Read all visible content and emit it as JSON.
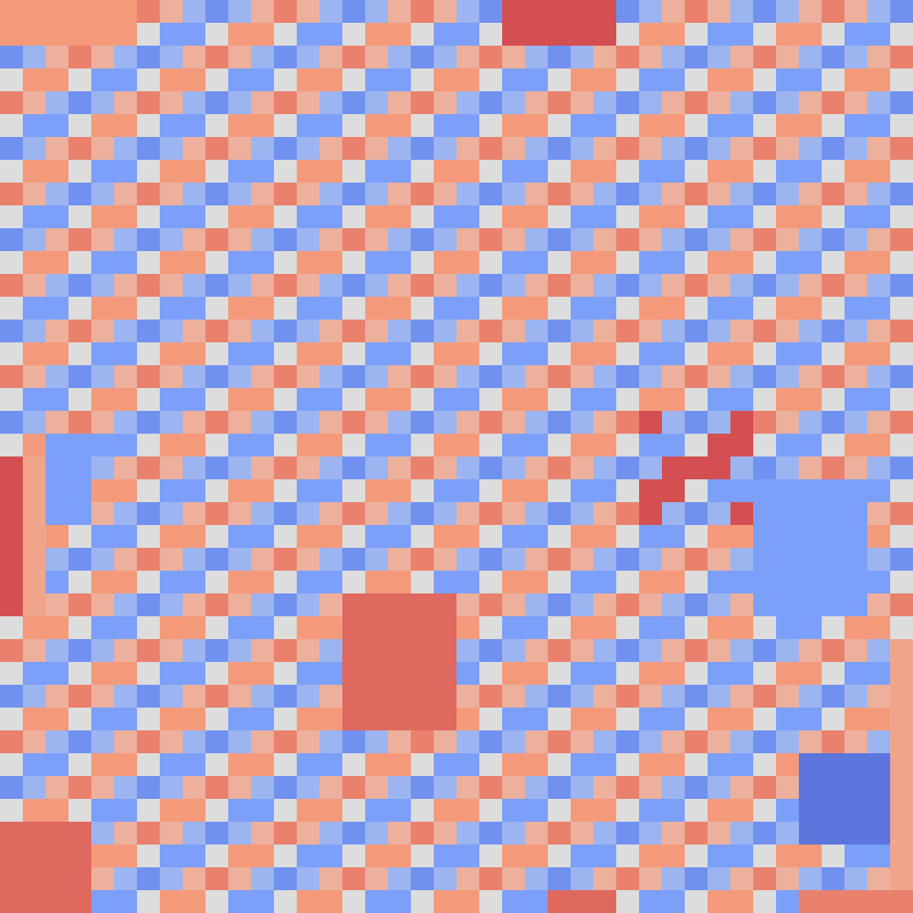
{
  "chart_data": {
    "type": "heatmap",
    "tick_labels": false,
    "color_range": [
      -12,
      12
    ],
    "cells": [
      [
        6,
        6,
        6,
        6,
        6,
        6,
        7,
        4,
        -4,
        -7,
        -4,
        4,
        7,
        4,
        -4,
        -7,
        -4,
        4,
        7,
        4,
        -4,
        -7,
        9,
        9,
        9,
        9,
        9,
        -7,
        -4,
        4,
        7,
        4,
        -4,
        -7,
        -4,
        4,
        7,
        4,
        -4,
        -7
      ],
      [
        6,
        6,
        6,
        6,
        6,
        6,
        0,
        -6,
        -6,
        0,
        6,
        6,
        0,
        -6,
        -6,
        0,
        6,
        6,
        0,
        -6,
        -6,
        0,
        9,
        9,
        9,
        9,
        9,
        0,
        6,
        6,
        0,
        -6,
        -6,
        0,
        6,
        6,
        0,
        -6,
        -6,
        0
      ],
      [
        -7,
        -4,
        4,
        7,
        4,
        -4,
        -7,
        -4,
        4,
        7,
        4,
        -4,
        -7,
        -4,
        4,
        7,
        4,
        -4,
        -7,
        -4,
        4,
        7,
        4,
        -4,
        -7,
        -4,
        4,
        7,
        4,
        -4,
        -7,
        -4,
        4,
        7,
        4,
        -4,
        -7,
        -4,
        4,
        7
      ],
      [
        0,
        6,
        6,
        0,
        -6,
        -6,
        0,
        6,
        6,
        0,
        -6,
        -6,
        0,
        6,
        6,
        0,
        -6,
        -6,
        0,
        6,
        6,
        0,
        -6,
        -6,
        0,
        6,
        6,
        0,
        -6,
        -6,
        0,
        6,
        6,
        0,
        -6,
        -6,
        0,
        6,
        6,
        0
      ],
      [
        7,
        4,
        -4,
        -7,
        -4,
        4,
        7,
        4,
        -4,
        -7,
        -4,
        4,
        7,
        4,
        -4,
        -7,
        -4,
        4,
        7,
        4,
        -4,
        -7,
        -4,
        4,
        7,
        4,
        -4,
        -7,
        -4,
        4,
        7,
        4,
        -4,
        -7,
        -4,
        4,
        7,
        4,
        -4,
        -7
      ],
      [
        0,
        -6,
        -6,
        0,
        6,
        6,
        0,
        -6,
        -6,
        0,
        6,
        6,
        0,
        -6,
        -6,
        0,
        6,
        6,
        0,
        -6,
        -6,
        0,
        6,
        6,
        0,
        -6,
        -6,
        0,
        6,
        6,
        0,
        -6,
        -6,
        0,
        6,
        6,
        0,
        -6,
        -6,
        0
      ],
      [
        -7,
        -4,
        4,
        7,
        4,
        -4,
        -7,
        -4,
        4,
        7,
        4,
        -4,
        -7,
        -4,
        4,
        7,
        4,
        -4,
        -7,
        -4,
        4,
        7,
        4,
        -4,
        -7,
        -4,
        4,
        7,
        4,
        -4,
        -7,
        -4,
        4,
        7,
        4,
        -4,
        -7,
        -4,
        4,
        7
      ],
      [
        0,
        6,
        6,
        0,
        -6,
        -6,
        0,
        6,
        6,
        0,
        -6,
        -6,
        0,
        6,
        6,
        0,
        -6,
        -6,
        0,
        6,
        6,
        0,
        -6,
        -6,
        0,
        6,
        6,
        0,
        -6,
        -6,
        0,
        6,
        6,
        0,
        -6,
        -6,
        0,
        6,
        6,
        0
      ],
      [
        7,
        4,
        -4,
        -7,
        -4,
        4,
        7,
        4,
        -4,
        -7,
        -4,
        4,
        7,
        4,
        -4,
        -7,
        -4,
        4,
        7,
        4,
        -4,
        -7,
        -4,
        4,
        7,
        4,
        -4,
        -7,
        -4,
        4,
        7,
        4,
        -4,
        -7,
        -4,
        4,
        7,
        4,
        -4,
        -7
      ],
      [
        0,
        -6,
        -6,
        0,
        6,
        6,
        0,
        -6,
        -6,
        0,
        6,
        6,
        0,
        -6,
        -6,
        0,
        6,
        6,
        0,
        -6,
        -6,
        0,
        6,
        6,
        0,
        -6,
        -6,
        0,
        6,
        6,
        0,
        -6,
        -6,
        0,
        6,
        6,
        0,
        -6,
        -6,
        0
      ],
      [
        -7,
        -4,
        4,
        7,
        4,
        -4,
        -7,
        -4,
        4,
        7,
        4,
        -4,
        -7,
        -4,
        4,
        7,
        4,
        -4,
        -7,
        -4,
        4,
        7,
        4,
        -4,
        -7,
        -4,
        4,
        7,
        4,
        -4,
        -7,
        -4,
        4,
        7,
        4,
        -4,
        -7,
        -4,
        4,
        7
      ],
      [
        0,
        6,
        6,
        0,
        -6,
        -6,
        0,
        6,
        6,
        0,
        -6,
        -6,
        0,
        6,
        6,
        0,
        -6,
        -6,
        0,
        6,
        6,
        0,
        -6,
        -6,
        0,
        6,
        6,
        0,
        -6,
        -6,
        0,
        6,
        6,
        0,
        -6,
        -6,
        0,
        6,
        6,
        0
      ],
      [
        7,
        4,
        -4,
        -7,
        -4,
        4,
        7,
        4,
        -4,
        -7,
        -4,
        4,
        7,
        4,
        -4,
        -7,
        -4,
        4,
        7,
        4,
        -4,
        -7,
        -4,
        4,
        7,
        4,
        -4,
        -7,
        -4,
        4,
        7,
        4,
        -4,
        -7,
        -4,
        4,
        7,
        4,
        -4,
        -7
      ],
      [
        0,
        -6,
        -6,
        0,
        6,
        6,
        0,
        -6,
        -6,
        0,
        6,
        6,
        0,
        -6,
        -6,
        0,
        6,
        6,
        0,
        -6,
        -6,
        0,
        6,
        6,
        0,
        -6,
        -6,
        0,
        6,
        6,
        0,
        -6,
        -6,
        0,
        6,
        6,
        0,
        -6,
        -6,
        0
      ],
      [
        -7,
        -4,
        4,
        7,
        4,
        -4,
        -7,
        -4,
        4,
        7,
        4,
        -4,
        -7,
        -4,
        4,
        7,
        4,
        -4,
        -7,
        -4,
        4,
        7,
        4,
        -4,
        -7,
        -4,
        4,
        7,
        4,
        -4,
        -7,
        -4,
        4,
        7,
        4,
        -4,
        -7,
        -4,
        4,
        7
      ],
      [
        0,
        6,
        6,
        0,
        -6,
        -6,
        0,
        6,
        6,
        0,
        -6,
        -6,
        0,
        6,
        6,
        0,
        -6,
        -6,
        0,
        6,
        6,
        0,
        -6,
        -6,
        0,
        6,
        6,
        0,
        -6,
        -6,
        0,
        6,
        6,
        0,
        -6,
        -6,
        0,
        6,
        6,
        0
      ],
      [
        7,
        4,
        -4,
        -7,
        -4,
        4,
        7,
        4,
        -4,
        -7,
        -4,
        4,
        7,
        4,
        -4,
        -7,
        -4,
        4,
        7,
        4,
        -4,
        -7,
        -4,
        4,
        7,
        4,
        -4,
        -7,
        -4,
        4,
        7,
        4,
        -4,
        -7,
        -4,
        4,
        7,
        4,
        -4,
        -7
      ],
      [
        0,
        -6,
        -6,
        0,
        6,
        6,
        0,
        -6,
        -6,
        0,
        6,
        6,
        0,
        -6,
        -6,
        0,
        6,
        6,
        0,
        -6,
        -6,
        0,
        6,
        6,
        0,
        -6,
        -6,
        0,
        6,
        6,
        0,
        -6,
        -6,
        0,
        6,
        6,
        0,
        -6,
        -6,
        0
      ],
      [
        -7,
        -4,
        4,
        7,
        4,
        -4,
        -7,
        -4,
        4,
        7,
        4,
        -4,
        -7,
        -4,
        4,
        7,
        4,
        -4,
        -7,
        -4,
        4,
        7,
        4,
        -4,
        -7,
        -4,
        4,
        7,
        9,
        -4,
        -7,
        -4,
        9,
        7,
        4,
        -4,
        -7,
        -4,
        4,
        7
      ],
      [
        0,
        6,
        -6,
        -6,
        -6,
        -6,
        0,
        6,
        6,
        0,
        -6,
        -6,
        0,
        6,
        6,
        0,
        -6,
        -6,
        0,
        6,
        6,
        0,
        -6,
        -6,
        0,
        6,
        6,
        0,
        -6,
        -6,
        0,
        9,
        9,
        0,
        -6,
        -6,
        0,
        6,
        6,
        0
      ],
      [
        9,
        5,
        -6,
        -6,
        -4,
        4,
        7,
        4,
        -4,
        -7,
        -4,
        4,
        7,
        4,
        -4,
        -7,
        -4,
        4,
        7,
        4,
        -4,
        -7,
        -4,
        4,
        7,
        4,
        -4,
        -7,
        -4,
        9,
        9,
        9,
        -4,
        -7,
        -4,
        4,
        7,
        4,
        -4,
        -7
      ],
      [
        9,
        5,
        -6,
        -6,
        6,
        6,
        0,
        -6,
        -6,
        0,
        6,
        6,
        0,
        -6,
        -6,
        0,
        6,
        6,
        0,
        -6,
        -6,
        0,
        6,
        6,
        0,
        -6,
        -6,
        0,
        9,
        9,
        0,
        -6,
        -6,
        -6,
        -6,
        -6,
        -6,
        -6,
        -6,
        0
      ],
      [
        9,
        5,
        -6,
        -6,
        4,
        -4,
        -7,
        -4,
        4,
        7,
        4,
        -4,
        -7,
        -4,
        4,
        7,
        4,
        -4,
        -7,
        -4,
        4,
        7,
        4,
        -4,
        -7,
        -4,
        4,
        7,
        9,
        -4,
        -7,
        -4,
        9,
        -6,
        -6,
        -6,
        -6,
        -6,
        4,
        7
      ],
      [
        9,
        5,
        6,
        0,
        -6,
        -6,
        0,
        6,
        6,
        0,
        -6,
        -6,
        0,
        6,
        6,
        0,
        -6,
        -6,
        0,
        6,
        6,
        0,
        -6,
        -6,
        0,
        6,
        6,
        0,
        -6,
        -6,
        0,
        6,
        6,
        -6,
        -6,
        -6,
        -6,
        -6,
        6,
        0
      ],
      [
        9,
        5,
        -4,
        -7,
        -4,
        4,
        7,
        4,
        -4,
        -7,
        -4,
        4,
        7,
        4,
        -4,
        -7,
        -4,
        4,
        7,
        4,
        -4,
        -7,
        -4,
        4,
        7,
        4,
        -4,
        -7,
        -4,
        4,
        7,
        4,
        -4,
        -6,
        -6,
        -6,
        -6,
        -6,
        -4,
        -7
      ],
      [
        9,
        5,
        -6,
        0,
        6,
        6,
        0,
        -6,
        -6,
        0,
        6,
        6,
        0,
        -6,
        -6,
        0,
        6,
        6,
        0,
        -6,
        -6,
        0,
        6,
        6,
        0,
        -6,
        -6,
        0,
        6,
        6,
        0,
        -6,
        -6,
        -6,
        -6,
        -6,
        -6,
        -6,
        -6,
        0
      ],
      [
        9,
        5,
        4,
        7,
        4,
        -4,
        -7,
        -4,
        4,
        7,
        4,
        -4,
        -7,
        -4,
        4,
        8,
        8,
        8,
        8,
        8,
        4,
        7,
        4,
        -4,
        -7,
        -4,
        4,
        7,
        4,
        -4,
        -7,
        -4,
        4,
        -6,
        -6,
        -6,
        -6,
        -6,
        4,
        7
      ],
      [
        0,
        6,
        6,
        0,
        -6,
        -6,
        0,
        6,
        6,
        0,
        -6,
        -6,
        0,
        6,
        6,
        8,
        8,
        8,
        8,
        8,
        6,
        0,
        -6,
        -6,
        0,
        6,
        6,
        0,
        -6,
        -6,
        0,
        6,
        6,
        0,
        -6,
        -6,
        0,
        6,
        6,
        0
      ],
      [
        7,
        4,
        -4,
        -7,
        -4,
        4,
        7,
        4,
        -4,
        -7,
        -4,
        4,
        7,
        4,
        -4,
        8,
        8,
        8,
        8,
        8,
        -4,
        -7,
        -4,
        4,
        7,
        4,
        -4,
        -7,
        -4,
        4,
        7,
        4,
        -4,
        -7,
        -4,
        4,
        7,
        4,
        -4,
        5
      ],
      [
        0,
        -6,
        -6,
        0,
        6,
        6,
        0,
        -6,
        -6,
        0,
        6,
        6,
        0,
        -6,
        -6,
        8,
        8,
        8,
        8,
        8,
        -6,
        0,
        6,
        6,
        0,
        -6,
        -6,
        0,
        6,
        6,
        0,
        -6,
        -6,
        0,
        6,
        6,
        0,
        -6,
        -6,
        5
      ],
      [
        -7,
        -4,
        4,
        7,
        4,
        -4,
        -7,
        -4,
        4,
        7,
        4,
        -4,
        -7,
        -4,
        4,
        8,
        8,
        8,
        8,
        8,
        4,
        7,
        4,
        -4,
        -7,
        -4,
        4,
        7,
        4,
        -4,
        -7,
        -4,
        4,
        7,
        4,
        -4,
        -7,
        -4,
        4,
        5
      ],
      [
        0,
        6,
        6,
        0,
        -6,
        -6,
        0,
        6,
        6,
        0,
        -6,
        -6,
        0,
        6,
        6,
        8,
        8,
        8,
        8,
        8,
        6,
        0,
        -6,
        -6,
        0,
        6,
        6,
        0,
        -6,
        -6,
        0,
        6,
        6,
        0,
        -6,
        -6,
        0,
        6,
        6,
        5
      ],
      [
        7,
        4,
        -4,
        -7,
        -4,
        4,
        7,
        4,
        -4,
        -7,
        -4,
        4,
        7,
        4,
        -4,
        -7,
        -4,
        4,
        7,
        4,
        -4,
        -7,
        -4,
        4,
        7,
        4,
        -4,
        -7,
        -4,
        4,
        7,
        4,
        -4,
        -7,
        -4,
        4,
        7,
        4,
        -4,
        5
      ],
      [
        0,
        -6,
        -6,
        0,
        6,
        6,
        0,
        -6,
        -6,
        0,
        6,
        6,
        0,
        -6,
        -6,
        0,
        6,
        6,
        0,
        -6,
        -6,
        0,
        6,
        6,
        0,
        -6,
        -6,
        0,
        6,
        6,
        0,
        -6,
        -6,
        0,
        6,
        -9,
        -9,
        -9,
        -9,
        5
      ],
      [
        -7,
        -4,
        4,
        7,
        4,
        -4,
        -7,
        -4,
        4,
        7,
        4,
        -4,
        -7,
        -4,
        4,
        7,
        4,
        -4,
        -7,
        -4,
        4,
        7,
        4,
        -4,
        -7,
        -4,
        4,
        7,
        4,
        -4,
        -7,
        -4,
        4,
        7,
        4,
        -9,
        -9,
        -9,
        -9,
        5
      ],
      [
        0,
        6,
        6,
        0,
        -6,
        -6,
        0,
        6,
        6,
        0,
        -6,
        -6,
        0,
        6,
        6,
        0,
        -6,
        -6,
        0,
        6,
        6,
        0,
        -6,
        -6,
        0,
        6,
        6,
        0,
        -6,
        -6,
        0,
        6,
        6,
        0,
        -6,
        -9,
        -9,
        -9,
        -9,
        5
      ],
      [
        8,
        8,
        8,
        8,
        -4,
        4,
        7,
        4,
        -4,
        -7,
        -4,
        4,
        7,
        4,
        -4,
        -7,
        -4,
        4,
        7,
        4,
        -4,
        -7,
        -4,
        4,
        7,
        4,
        -4,
        -7,
        -4,
        4,
        7,
        4,
        -4,
        -7,
        -4,
        -9,
        -9,
        -9,
        -9,
        5
      ],
      [
        8,
        8,
        8,
        8,
        6,
        6,
        0,
        -6,
        -6,
        0,
        6,
        6,
        0,
        -6,
        -6,
        0,
        6,
        6,
        0,
        -6,
        -6,
        0,
        6,
        6,
        0,
        -6,
        -6,
        0,
        6,
        6,
        0,
        -6,
        -6,
        0,
        6,
        6,
        0,
        -6,
        -6,
        5
      ],
      [
        8,
        8,
        8,
        8,
        4,
        -4,
        -7,
        -4,
        4,
        7,
        4,
        -4,
        -7,
        -4,
        4,
        7,
        4,
        -4,
        -7,
        -4,
        4,
        7,
        4,
        -4,
        -7,
        -4,
        4,
        7,
        4,
        -4,
        -7,
        -4,
        4,
        7,
        4,
        -4,
        -7,
        -4,
        4,
        5
      ],
      [
        8,
        8,
        8,
        8,
        -6,
        -6,
        0,
        6,
        6,
        0,
        -6,
        -6,
        0,
        6,
        6,
        0,
        -6,
        -6,
        0,
        6,
        6,
        0,
        -6,
        -6,
        8,
        8,
        8,
        0,
        -6,
        -6,
        0,
        6,
        6,
        0,
        -6,
        7,
        7,
        7,
        7,
        7
      ]
    ]
  }
}
